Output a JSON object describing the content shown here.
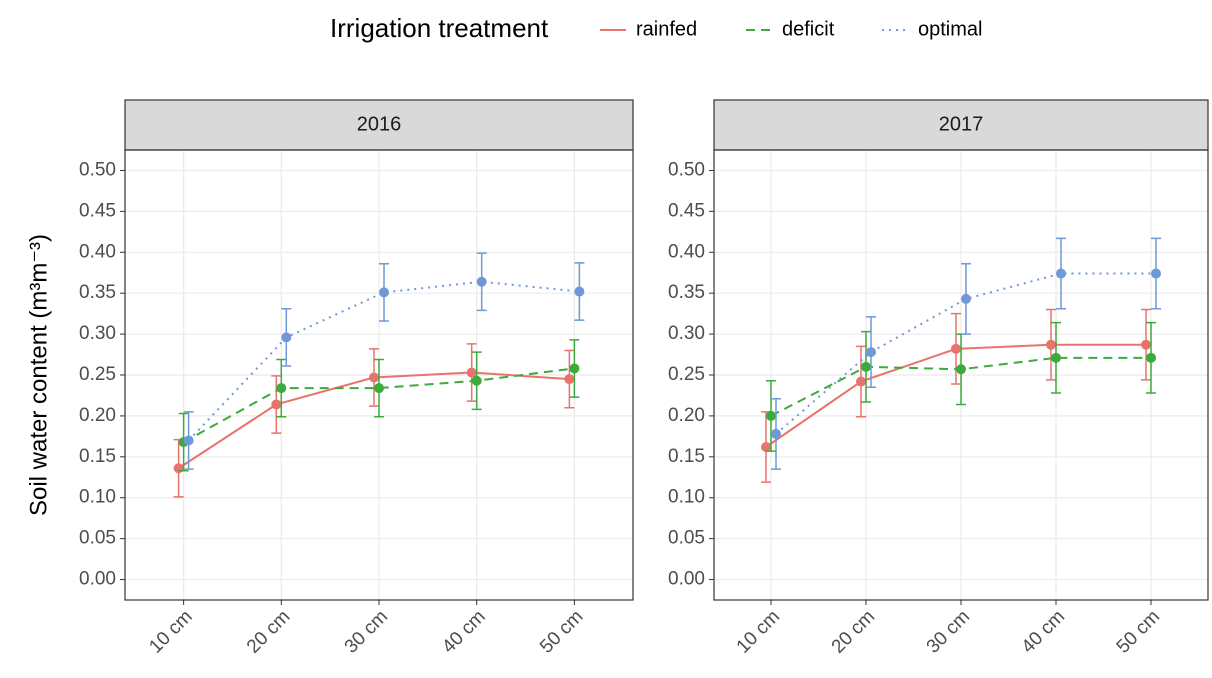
{
  "chart_data": {
    "type": "line",
    "legend_title": "Irrigation treatment",
    "ylabel": "Soil water content (m³m⁻³)",
    "panels": [
      "2016",
      "2017"
    ],
    "categories": [
      "10 cm",
      "20 cm",
      "30 cm",
      "40 cm",
      "50 cm"
    ],
    "ylim": [
      -0.025,
      0.525
    ],
    "yticks": [
      {
        "value": 0,
        "label": "0.00"
      },
      {
        "value": 0.05,
        "label": "0.05"
      },
      {
        "value": 0.1,
        "label": "0.10"
      },
      {
        "value": 0.15,
        "label": "0.15"
      },
      {
        "value": 0.2,
        "label": "0.20"
      },
      {
        "value": 0.25,
        "label": "0.25"
      },
      {
        "value": 0.3,
        "label": "0.30"
      },
      {
        "value": 0.35,
        "label": "0.35"
      },
      {
        "value": 0.4,
        "label": "0.40"
      },
      {
        "value": 0.45,
        "label": "0.45"
      },
      {
        "value": 0.5,
        "label": "0.50"
      }
    ],
    "grid": true,
    "series": [
      {
        "name": "rainfed",
        "color": "#e8736c",
        "linestyle": "solid",
        "values": [
          [
            0.136,
            0.214,
            0.247,
            0.253,
            0.245
          ],
          [
            0.162,
            0.242,
            0.282,
            0.287,
            0.287
          ]
        ],
        "errors": [
          [
            0.035,
            0.035,
            0.035,
            0.035,
            0.035
          ],
          [
            0.043,
            0.043,
            0.043,
            0.043,
            0.043
          ]
        ]
      },
      {
        "name": "deficit",
        "color": "#3daa3d",
        "linestyle": "dashed",
        "values": [
          [
            0.168,
            0.234,
            0.234,
            0.243,
            0.258
          ],
          [
            0.2,
            0.26,
            0.257,
            0.271,
            0.271
          ]
        ],
        "errors": [
          [
            0.035,
            0.035,
            0.035,
            0.035,
            0.035
          ],
          [
            0.043,
            0.043,
            0.043,
            0.043,
            0.043
          ]
        ]
      },
      {
        "name": "optimal",
        "color": "#6f98d6",
        "linestyle": "dotted",
        "values": [
          [
            0.17,
            0.296,
            0.351,
            0.364,
            0.352
          ],
          [
            0.178,
            0.278,
            0.343,
            0.374,
            0.374
          ]
        ],
        "errors": [
          [
            0.035,
            0.035,
            0.035,
            0.035,
            0.035
          ],
          [
            0.043,
            0.043,
            0.043,
            0.043,
            0.043
          ]
        ]
      }
    ]
  }
}
